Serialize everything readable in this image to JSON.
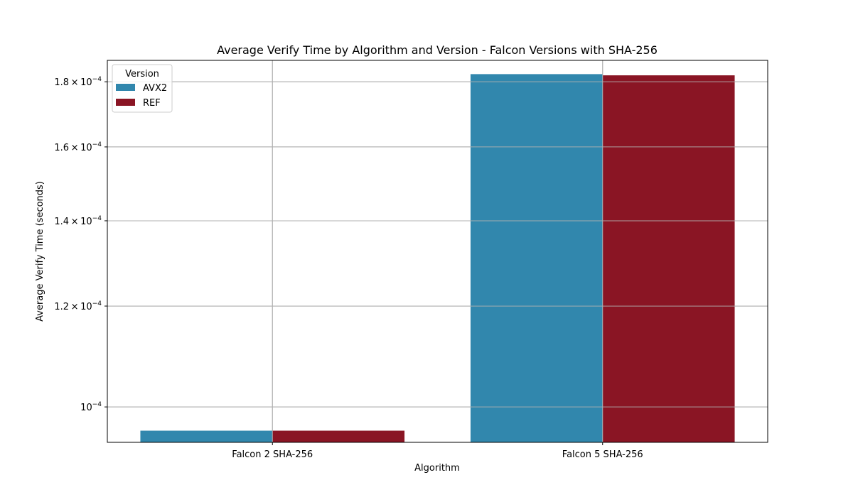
{
  "chart_data": {
    "type": "bar",
    "title": "Average Verify Time by Algorithm and Version - Falcon Versions with SHA-256",
    "xlabel": "Algorithm",
    "ylabel": "Average Verify Time (seconds)",
    "categories": [
      "Falcon 2 SHA-256",
      "Falcon 5 SHA-256"
    ],
    "series": [
      {
        "name": "AVX2",
        "color": "#3187ad",
        "values": [
          9.58e-05,
          0.0001825
        ]
      },
      {
        "name": "REF",
        "color": "#8a1524",
        "values": [
          9.58e-05,
          0.0001821
        ]
      }
    ],
    "yscale": "log",
    "ylim": [
      9.38e-05,
      0.0001871
    ],
    "yticks": [
      {
        "value": 0.0001,
        "mantissa": "",
        "exponent": "−4"
      },
      {
        "value": 0.00012,
        "mantissa": "1.2",
        "exponent": "−4"
      },
      {
        "value": 0.00014,
        "mantissa": "1.4",
        "exponent": "−4"
      },
      {
        "value": 0.00016,
        "mantissa": "1.6",
        "exponent": "−4"
      },
      {
        "value": 0.00018,
        "mantissa": "1.8",
        "exponent": "−4"
      }
    ],
    "grid": true,
    "legend": {
      "title": "Version",
      "placement": "top-left"
    }
  }
}
